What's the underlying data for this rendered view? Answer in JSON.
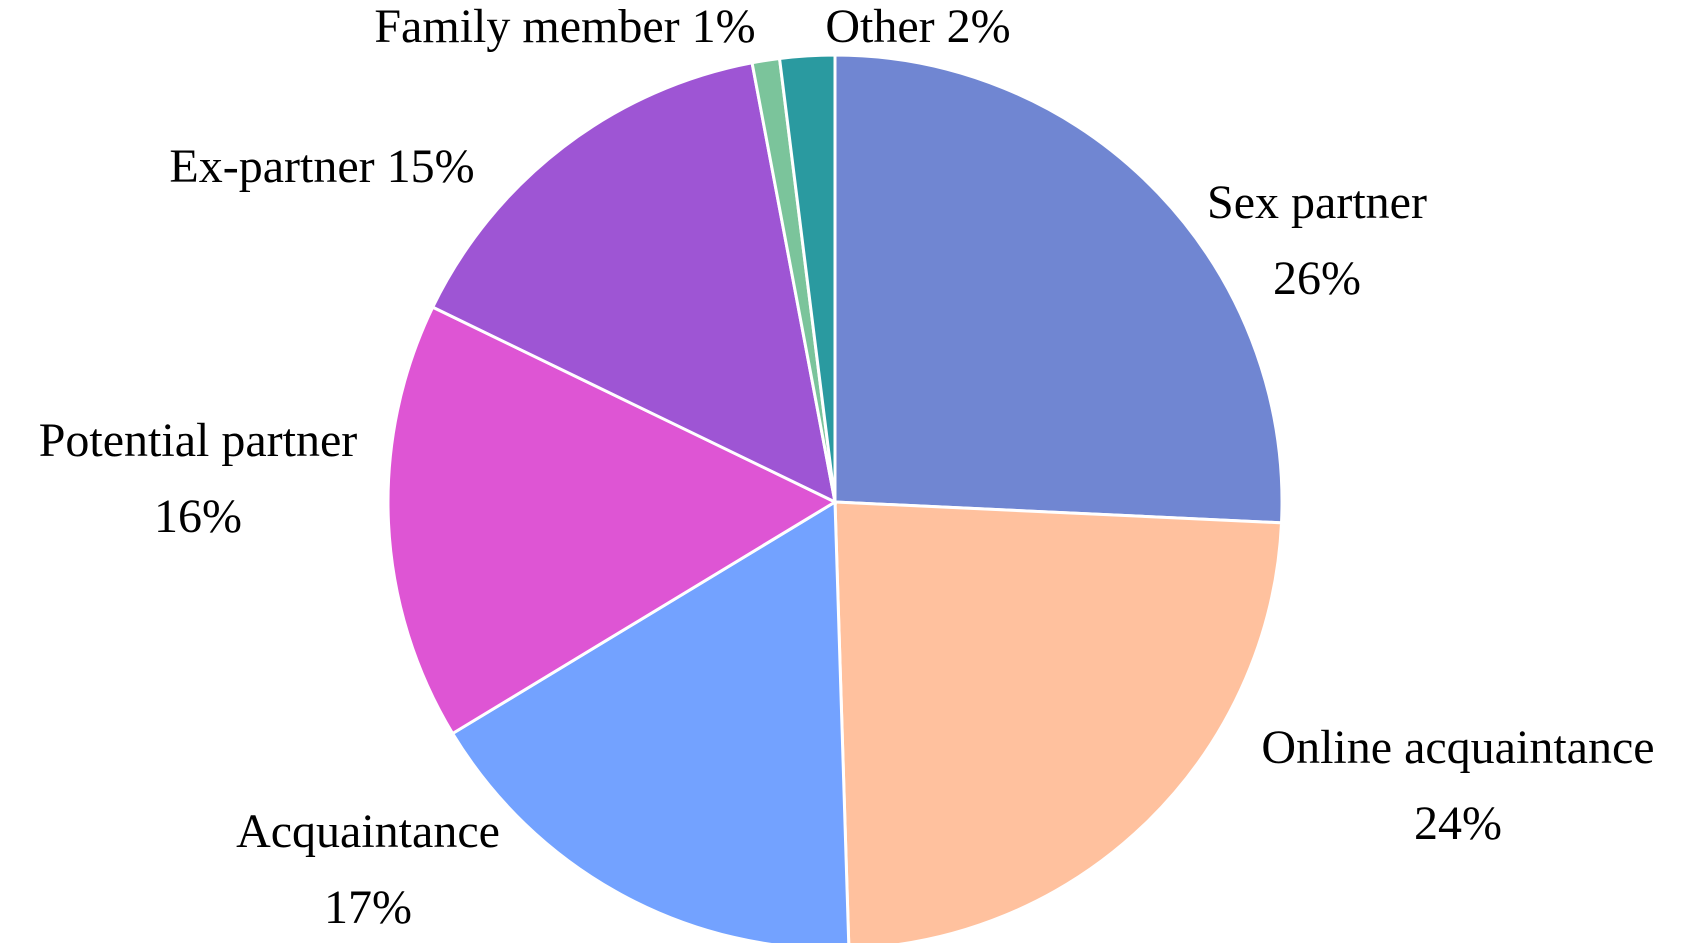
{
  "chart_data": {
    "type": "pie",
    "categories": [
      "Sex partner",
      "Online acquaintance",
      "Acquaintance",
      "Potential partner",
      "Ex-partner",
      "Family member",
      "Other"
    ],
    "values": [
      26,
      24,
      17,
      16,
      15,
      1,
      2
    ],
    "value_labels": [
      "26%",
      "24%",
      "17%",
      "16%",
      "15%",
      "1%",
      "2%"
    ],
    "colors": [
      "#7086d2",
      "#ffc19e",
      "#73a2ff",
      "#de55d4",
      "#9e55d4",
      "#7bc49b",
      "#2a9aa0"
    ]
  }
}
